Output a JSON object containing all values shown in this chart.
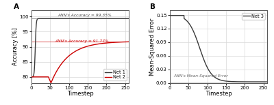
{
  "ann_accuracy_net1": 99.35,
  "ann_accuracy_net2": 91.77,
  "ann_mse_net3": 0.005,
  "xlim": [
    0,
    260
  ],
  "xticks": [
    0,
    50,
    100,
    150,
    200,
    250
  ],
  "ylim_acc": [
    78,
    102
  ],
  "ylim_mse": [
    0.0,
    0.16
  ],
  "yticks_acc": [
    80,
    85,
    90,
    95,
    100
  ],
  "yticks_mse": [
    0.0,
    0.03,
    0.06,
    0.09,
    0.12,
    0.15
  ],
  "xlabel": "Timestep",
  "ylabel_acc": "Accuracy [%]",
  "ylabel_mse": "Mean-Squared Error",
  "label_net1": "Net 1",
  "label_net2": "Net 2",
  "label_net3": "Net 3",
  "color_net1": "#3a3a3a",
  "color_net2": "#cc0000",
  "color_net3": "#3a3a3a",
  "ann_text_net1": "ANN's Accuracy = 99.35%",
  "ann_text_net2": "ANN's Accuracy = 91.77%",
  "ann_text_mse": "ANN's Mean-Squared Error",
  "panel_a": "A",
  "panel_b": "B",
  "background_color": "#ffffff",
  "grid_color": "#d8d8d8"
}
